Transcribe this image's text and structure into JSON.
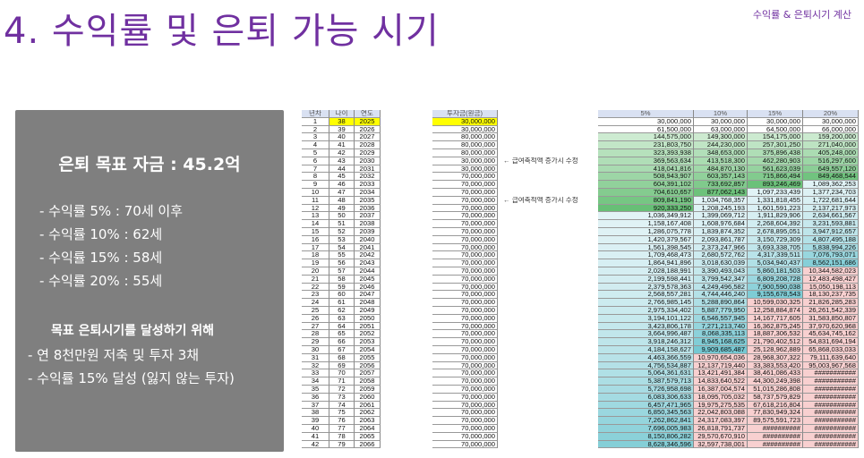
{
  "title": "4. 수익률 및 은퇴 가능 시기",
  "subtitle": "수익률 & 은퇴시기 계산",
  "panel": {
    "goal": "은퇴 목표 자금 : 45.2억",
    "rates": [
      "- 수익률  5% : 70세 이후",
      "- 수익률 10% : 62세",
      "- 수익률 15% : 58세",
      "- 수익률 20% : 55세"
    ],
    "plan_heading": "목표 은퇴시기를 달성하기 위해",
    "plan": [
      "- 연 8천만원 저축 및 투자 3채",
      "- 수익률 15% 달성 (잃지 않는 투자)"
    ]
  },
  "colors": {
    "title": "#7030a0",
    "panel": "#7f7f7f",
    "highlight": "#ffff00",
    "green": "#63be7b",
    "teal": "#7fcfd8",
    "pink": "#f8d0d0"
  },
  "table": {
    "headers": [
      "년차",
      "나이",
      "연도",
      "투자금(원금)",
      "5%",
      "10%",
      "15%",
      "20%"
    ],
    "note": "← 급여축적액 증가시 수정",
    "note_rows": [
      6,
      11
    ],
    "invest": [
      "30,000,000",
      "30,000,000",
      "80,000,000",
      "80,000,000",
      "80,000,000",
      "30,000,000",
      "30,000,000",
      "70,000,000"
    ],
    "invest_rest": "70,000,000",
    "start_age": 38,
    "start_year": 2025,
    "values": [
      [
        "30,000,000",
        "30,000,000",
        "30,000,000",
        "30,000,000"
      ],
      [
        "61,500,000",
        "63,000,000",
        "64,500,000",
        "66,000,000"
      ],
      [
        "144,575,000",
        "149,300,000",
        "154,175,000",
        "159,200,000"
      ],
      [
        "231,803,750",
        "244,230,000",
        "257,301,250",
        "271,040,000"
      ],
      [
        "323,393,938",
        "348,653,000",
        "375,896,438",
        "405,248,000"
      ],
      [
        "369,563,634",
        "413,518,300",
        "462,280,903",
        "516,297,600"
      ],
      [
        "418,041,816",
        "484,870,130",
        "561,623,039",
        "649,557,120"
      ],
      [
        "508,943,907",
        "603,357,143",
        "715,866,494",
        "849,468,544"
      ],
      [
        "604,391,102",
        "733,692,857",
        "893,246,469",
        "1,089,362,253"
      ],
      [
        "704,610,657",
        "877,062,143",
        "1,097,233,439",
        "1,377,234,703"
      ],
      [
        "809,841,190",
        "1,034,768,357",
        "1,331,818,455",
        "1,722,681,644"
      ],
      [
        "920,333,250",
        "1,208,245,193",
        "1,601,591,223",
        "2,137,217,973"
      ],
      [
        "1,036,349,912",
        "1,399,069,712",
        "1,911,829,906",
        "2,634,661,567"
      ],
      [
        "1,158,167,408",
        "1,608,976,684",
        "2,268,604,392",
        "3,231,593,881"
      ],
      [
        "1,286,075,778",
        "1,839,874,352",
        "2,678,895,051",
        "3,947,912,657"
      ],
      [
        "1,420,379,567",
        "2,093,861,787",
        "3,150,729,309",
        "4,807,495,188"
      ],
      [
        "1,561,398,545",
        "2,373,247,966",
        "3,693,338,705",
        "5,838,994,226"
      ],
      [
        "1,709,468,473",
        "2,680,572,762",
        "4,317,339,511",
        "7,076,793,071"
      ],
      [
        "1,864,941,896",
        "3,018,630,039",
        "5,034,940,437",
        "8,562,151,686"
      ],
      [
        "2,028,188,991",
        "3,390,493,043",
        "5,860,181,503",
        "10,344,582,023"
      ],
      [
        "2,199,598,441",
        "3,799,542,347",
        "6,809,208,728",
        "12,483,498,427"
      ],
      [
        "2,379,578,363",
        "4,249,496,582",
        "7,900,590,038",
        "15,050,198,113"
      ],
      [
        "2,568,557,281",
        "4,744,446,240",
        "9,155,678,543",
        "18,130,237,735"
      ],
      [
        "2,766,985,145",
        "5,288,890,864",
        "10,599,030,325",
        "21,826,285,283"
      ],
      [
        "2,975,334,402",
        "5,887,779,950",
        "12,258,884,874",
        "26,261,542,339"
      ],
      [
        "3,194,101,122",
        "6,546,557,945",
        "14,167,717,605",
        "31,583,850,807"
      ],
      [
        "3,423,806,178",
        "7,271,213,740",
        "16,362,875,245",
        "37,970,620,968"
      ],
      [
        "3,664,996,487",
        "8,068,335,113",
        "18,887,306,532",
        "45,634,745,162"
      ],
      [
        "3,918,246,312",
        "8,945,168,625",
        "21,790,402,512",
        "54,831,694,194"
      ],
      [
        "4,184,158,627",
        "9,909,685,487",
        "25,128,962,889",
        "65,868,033,033"
      ],
      [
        "4,463,366,559",
        "10,970,654,036",
        "28,968,307,322",
        "79,111,639,640"
      ],
      [
        "4,756,534,887",
        "12,137,719,440",
        "33,383,553,420",
        "95,003,967,568"
      ],
      [
        "5,064,361,631",
        "13,421,491,384",
        "38,461,086,433",
        "###########"
      ],
      [
        "5,387,579,713",
        "14,833,640,522",
        "44,300,249,398",
        "###########"
      ],
      [
        "5,726,958,698",
        "16,387,004,574",
        "51,015,286,808",
        "###########"
      ],
      [
        "6,083,306,633",
        "18,095,705,032",
        "58,737,579,829",
        "###########"
      ],
      [
        "6,457,471,965",
        "19,975,275,535",
        "67,618,216,804",
        "###########"
      ],
      [
        "6,850,345,563",
        "22,042,803,088",
        "77,830,949,324",
        "###########"
      ],
      [
        "7,262,862,841",
        "24,317,083,397",
        "89,575,591,723",
        "###########"
      ],
      [
        "7,696,005,983",
        "26,818,791,737",
        "##########",
        "###########"
      ],
      [
        "8,150,806,282",
        "29,570,670,910",
        "##########",
        "###########"
      ],
      [
        "8,628,346,596",
        "32,597,738,001",
        "##########",
        "###########"
      ]
    ]
  }
}
